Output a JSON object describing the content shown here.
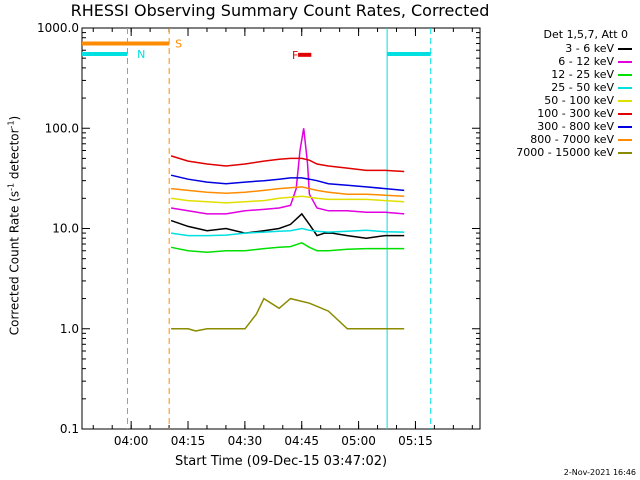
{
  "title": "RHESSI Observing Summary Count Rates, Corrected",
  "footer": "2-Nov-2021 16:46",
  "chart_data": {
    "type": "line",
    "title": "RHESSI Observing Summary Count Rates, Corrected",
    "xlabel": "Start Time (09-Dec-15 03:47:02)",
    "ylabel": "Corrected Count Rate (s⁻¹ detector⁻¹)",
    "ylabel_parts": [
      "Corrected Count Rate (s",
      "-1",
      " detector",
      "-1",
      ")"
    ],
    "x_unit": "minutes after 03:47:02",
    "xlim": [
      0,
      105
    ],
    "ylim": [
      0.1,
      1000
    ],
    "y_scale": "log",
    "x_ticks": [
      {
        "label": "04:00",
        "x": 12.97
      },
      {
        "label": "04:15",
        "x": 27.97
      },
      {
        "label": "04:30",
        "x": 42.97
      },
      {
        "label": "04:45",
        "x": 57.97
      },
      {
        "label": "05:00",
        "x": 72.97
      },
      {
        "label": "05:15",
        "x": 87.97
      }
    ],
    "y_ticks": [
      {
        "label": "0.1",
        "y": 0.1
      },
      {
        "label": "1.0",
        "y": 1
      },
      {
        "label": "10.0",
        "y": 10
      },
      {
        "label": "100.0",
        "y": 100
      },
      {
        "label": "1000.0",
        "y": 1000
      }
    ],
    "legend_header": "Det 1,5,7, Att 0",
    "series": [
      {
        "name": "3 - 6 keV",
        "color": "#000000",
        "x": [
          23.5,
          28,
          33,
          38,
          43,
          48,
          52,
          55,
          58,
          60,
          62,
          64,
          66,
          70,
          75,
          80,
          85
        ],
        "y": [
          12,
          10.5,
          9.5,
          10,
          9,
          9.5,
          10,
          11,
          14,
          11,
          8.5,
          9,
          9,
          8.5,
          8,
          8.5,
          8.5
        ]
      },
      {
        "name": "6 - 12 keV",
        "color": "#e000e0",
        "x": [
          23.5,
          28,
          33,
          38,
          43,
          48,
          52,
          55,
          56.5,
          57.5,
          58.5,
          59.5,
          60,
          62,
          65,
          70,
          75,
          80,
          85
        ],
        "y": [
          16,
          15,
          14,
          14,
          15,
          15.5,
          16,
          17,
          25,
          60,
          100,
          45,
          22,
          16,
          15,
          15,
          14.5,
          14.5,
          14
        ]
      },
      {
        "name": "12 - 25 keV",
        "color": "#00e000",
        "x": [
          23.5,
          28,
          33,
          38,
          43,
          48,
          52,
          55,
          58,
          60,
          62,
          65,
          70,
          75,
          80,
          85
        ],
        "y": [
          6.5,
          6,
          5.8,
          6,
          6,
          6.3,
          6.5,
          6.6,
          7.2,
          6.5,
          6,
          6,
          6.2,
          6.3,
          6.3,
          6.3
        ]
      },
      {
        "name": "25 - 50 keV",
        "color": "#00e0e0",
        "x": [
          23.5,
          28,
          33,
          38,
          43,
          48,
          52,
          55,
          58,
          60,
          62,
          65,
          70,
          75,
          80,
          85
        ],
        "y": [
          9,
          8.5,
          8.5,
          8.6,
          9,
          9.2,
          9.4,
          9.5,
          10,
          9.6,
          9.4,
          9.2,
          9.4,
          9.6,
          9.3,
          9.2
        ]
      },
      {
        "name": "50 - 100 keV",
        "color": "#e0e000",
        "x": [
          23.5,
          28,
          33,
          38,
          43,
          48,
          52,
          55,
          58,
          60,
          62,
          65,
          70,
          75,
          80,
          85
        ],
        "y": [
          20,
          19,
          18.5,
          18,
          18.5,
          19,
          20,
          20.5,
          21,
          20.5,
          20,
          19.5,
          19.5,
          19.5,
          19,
          18.5
        ]
      },
      {
        "name": "100 - 300 keV",
        "color": "#e00000",
        "x": [
          23.5,
          28,
          33,
          38,
          43,
          48,
          52,
          55,
          58,
          60,
          62,
          65,
          70,
          75,
          80,
          85
        ],
        "y": [
          53,
          47,
          44,
          42,
          44,
          47,
          49,
          50,
          50,
          48,
          44,
          42,
          40,
          38,
          38,
          37
        ]
      },
      {
        "name": "300 - 800 keV",
        "color": "#0000e0",
        "x": [
          23.5,
          28,
          33,
          38,
          43,
          48,
          52,
          55,
          58,
          60,
          62,
          65,
          70,
          75,
          80,
          85
        ],
        "y": [
          34,
          31,
          29,
          28,
          29,
          30,
          31,
          32,
          32,
          31,
          30,
          28,
          27,
          26,
          25,
          24
        ]
      },
      {
        "name": "800 - 7000 keV",
        "color": "#ff8c00",
        "x": [
          23.5,
          28,
          33,
          38,
          43,
          48,
          52,
          55,
          58,
          60,
          62,
          65,
          70,
          75,
          80,
          85
        ],
        "y": [
          25,
          24,
          23,
          22.5,
          23,
          24,
          25,
          25.5,
          26,
          25,
          24,
          23,
          22,
          22,
          21.5,
          21
        ]
      },
      {
        "name": "7000 - 15000 keV",
        "color": "#8b8b00",
        "x": [
          23.5,
          28,
          30,
          33,
          38,
          43,
          46,
          48,
          52,
          55,
          60,
          65,
          70,
          75,
          80,
          85
        ],
        "y": [
          1,
          1,
          0.95,
          1,
          1,
          1,
          1.4,
          2,
          1.6,
          2,
          1.8,
          1.5,
          1,
          1,
          1,
          1
        ]
      }
    ],
    "annotations": [
      {
        "label": "N",
        "color": "#00e0e0",
        "x": 12.97
      },
      {
        "label": "S",
        "color": "#ff8c00",
        "x": 23.0
      },
      {
        "label": "F",
        "color": "#e00000",
        "x": 57.5
      }
    ],
    "state_bars": [
      {
        "name": "SAA",
        "color": "#ff8c00",
        "x0": 0,
        "x1": 23.0,
        "y": 700
      },
      {
        "name": "Night",
        "color": "#00e0e0",
        "x0": 0,
        "x1": 12,
        "y": 550
      },
      {
        "name": "Night 2",
        "color": "#00e0e0",
        "x0": 80.5,
        "x1": 92,
        "y": 550
      },
      {
        "name": "Flare",
        "color": "#e00000",
        "x0": 57,
        "x1": 60.5,
        "y": 540
      }
    ],
    "vertical_lines": [
      {
        "x": 12,
        "color": "#00e0e0",
        "style": "dashed"
      },
      {
        "x": 23.0,
        "color": "#ff8c00",
        "style": "dashed"
      },
      {
        "x": 80.5,
        "color": "#00e0e0",
        "style": "solid"
      },
      {
        "x": 92,
        "color": "#00e0e0",
        "style": "dashed"
      }
    ],
    "grid": false,
    "legend_position": "right"
  }
}
